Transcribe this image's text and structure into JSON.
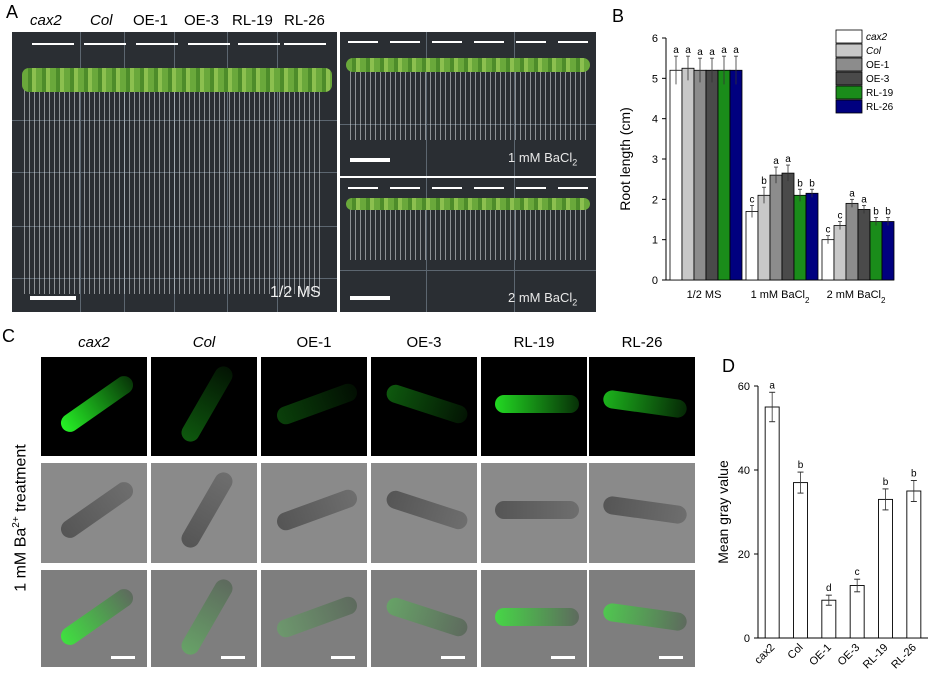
{
  "panel_a": {
    "letter": "A",
    "lines": [
      "cax2",
      "Col",
      "OE-1",
      "OE-3",
      "RL-19",
      "RL-26"
    ],
    "media": {
      "ms": "1/2 MS",
      "ba1": "1 mM BaCl",
      "ba2": "2 mM BaCl",
      "sub": "2"
    }
  },
  "panel_b": {
    "letter": "B",
    "chart_data": {
      "type": "bar",
      "categories": [
        "1/2 MS",
        "1 mM BaCl2",
        "2 mM BaCl2"
      ],
      "ylabel": "Root length (cm)",
      "ylim": [
        0,
        6
      ],
      "yticks": [
        0,
        1,
        2,
        3,
        4,
        5,
        6
      ],
      "series": [
        {
          "name": "cax2",
          "color": "#ffffff",
          "values": [
            5.2,
            1.7,
            1.0
          ],
          "errors": [
            0.35,
            0.15,
            0.1
          ],
          "letters": [
            "a",
            "c",
            "c"
          ]
        },
        {
          "name": "Col",
          "color": "#c8c8c8",
          "values": [
            5.25,
            2.1,
            1.35
          ],
          "errors": [
            0.3,
            0.2,
            0.1
          ],
          "letters": [
            "a",
            "b",
            "c"
          ]
        },
        {
          "name": "OE-1",
          "color": "#8c8c8c",
          "values": [
            5.2,
            2.6,
            1.9
          ],
          "errors": [
            0.3,
            0.2,
            0.1
          ],
          "letters": [
            "a",
            "a",
            "a"
          ]
        },
        {
          "name": "OE-3",
          "color": "#4a4a4a",
          "values": [
            5.2,
            2.65,
            1.75
          ],
          "errors": [
            0.3,
            0.2,
            0.1
          ],
          "letters": [
            "a",
            "a",
            "a"
          ]
        },
        {
          "name": "RL-19",
          "color": "#1a8c1a",
          "values": [
            5.2,
            2.1,
            1.45
          ],
          "errors": [
            0.35,
            0.15,
            0.1
          ],
          "letters": [
            "a",
            "b",
            "b"
          ]
        },
        {
          "name": "RL-26",
          "color": "#00007f",
          "values": [
            5.2,
            2.15,
            1.45
          ],
          "errors": [
            0.35,
            0.1,
            0.1
          ],
          "letters": [
            "a",
            "b",
            "b"
          ]
        }
      ],
      "legend_position": "top-right"
    }
  },
  "panel_c": {
    "letter": "C",
    "columns": [
      "cax2",
      "Col",
      "OE-1",
      "OE-3",
      "RL-19",
      "RL-26"
    ],
    "row_label": "1 mM Ba",
    "row_label_sup": "2+",
    "row_label_suffix": " treatment"
  },
  "panel_d": {
    "letter": "D",
    "chart_data": {
      "type": "bar",
      "categories": [
        "cax2",
        "Col",
        "OE-1",
        "OE-3",
        "RL-19",
        "RL-26"
      ],
      "values": [
        55,
        37,
        9,
        12.5,
        33,
        35
      ],
      "errors": [
        3.5,
        2.5,
        1.2,
        1.5,
        2.5,
        2.5
      ],
      "letters": [
        "a",
        "b",
        "d",
        "c",
        "b",
        "b"
      ],
      "ylabel": "Mean gray value",
      "ylim": [
        0,
        60
      ],
      "yticks": [
        0,
        20,
        40,
        60
      ]
    }
  }
}
